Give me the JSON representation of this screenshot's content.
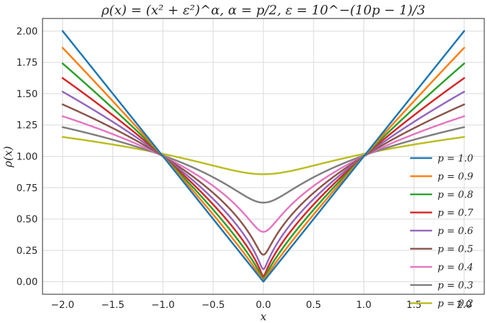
{
  "chart_data": {
    "type": "line",
    "title": "ρ(x) = (x² + ε²)^α,    α = p/2, ε = 10^−(10p − 1)/3",
    "xlabel": "x",
    "ylabel": "ρ(x)",
    "xlim": [
      -2.2,
      2.2
    ],
    "ylim": [
      -0.1,
      2.1
    ],
    "xticks": [
      -2.0,
      -1.5,
      -1.0,
      -0.5,
      0.0,
      0.5,
      1.0,
      1.5,
      2.0
    ],
    "yticks": [
      0.0,
      0.25,
      0.5,
      0.75,
      1.0,
      1.25,
      1.5,
      1.75,
      2.0
    ],
    "xtick_labels": [
      "−2.0",
      "−1.5",
      "−1.0",
      "−0.5",
      "0.0",
      "0.5",
      "1.0",
      "1.5",
      "2.0"
    ],
    "ytick_labels": [
      "0.00",
      "0.25",
      "0.50",
      "0.75",
      "1.00",
      "1.25",
      "1.50",
      "1.75",
      "2.00"
    ],
    "grid": true,
    "legend_position": "lower-right",
    "series": [
      {
        "name": "p = 1.0",
        "p": 1.0,
        "color": "#1f77b4"
      },
      {
        "name": "p = 0.9",
        "p": 0.9,
        "color": "#ff7f0e"
      },
      {
        "name": "p = 0.8",
        "p": 0.8,
        "color": "#2ca02c"
      },
      {
        "name": "p = 0.7",
        "p": 0.7,
        "color": "#d62728"
      },
      {
        "name": "p = 0.6",
        "p": 0.6,
        "color": "#9467bd"
      },
      {
        "name": "p = 0.5",
        "p": 0.5,
        "color": "#8c564b"
      },
      {
        "name": "p = 0.4",
        "p": 0.4,
        "color": "#e377c2"
      },
      {
        "name": "p = 0.3",
        "p": 0.3,
        "color": "#7f7f7f"
      },
      {
        "name": "p = 0.2",
        "p": 0.2,
        "color": "#bcbd22"
      }
    ]
  }
}
